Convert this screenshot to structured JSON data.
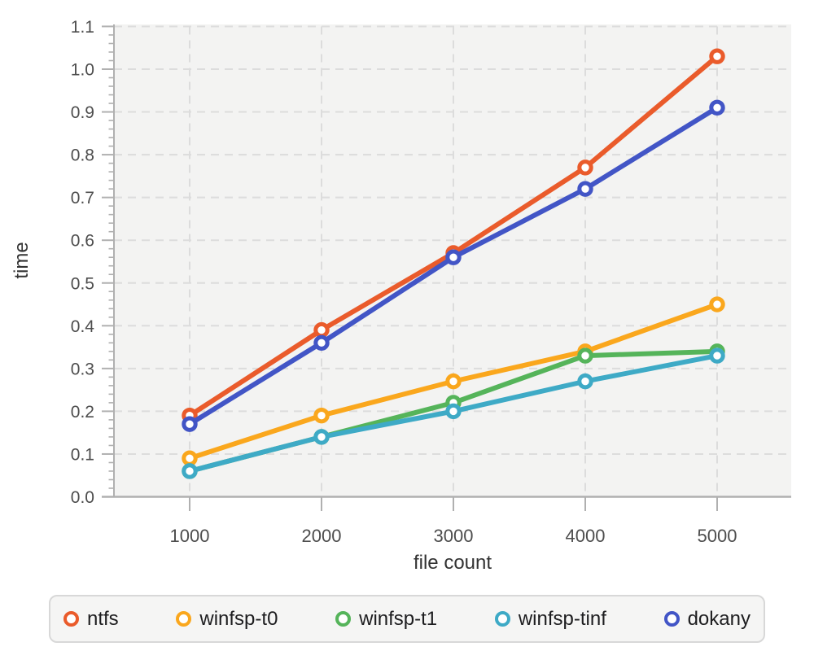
{
  "chart_data": {
    "type": "line",
    "title": "",
    "xlabel": "file count",
    "ylabel": "time",
    "x": [
      1000,
      2000,
      3000,
      4000,
      5000
    ],
    "series": [
      {
        "name": "ntfs",
        "color": "#EA5B2B",
        "values": [
          0.19,
          0.39,
          0.57,
          0.77,
          1.03
        ]
      },
      {
        "name": "winfsp-t0",
        "color": "#FAA71D",
        "values": [
          0.09,
          0.19,
          0.27,
          0.34,
          0.45
        ]
      },
      {
        "name": "winfsp-t1",
        "color": "#55B45A",
        "values": [
          0.06,
          0.14,
          0.22,
          0.33,
          0.34
        ]
      },
      {
        "name": "winfsp-tinf",
        "color": "#3EAAC6",
        "values": [
          0.06,
          0.14,
          0.2,
          0.27,
          0.33
        ]
      },
      {
        "name": "dokany",
        "color": "#4255C6",
        "values": [
          0.17,
          0.36,
          0.56,
          0.72,
          0.91
        ]
      }
    ],
    "ylim": [
      0.0,
      1.1
    ],
    "ytick_step": 0.1,
    "y_minor_step": 0.02,
    "grid": true,
    "grid_style": "dashed",
    "legend_position": "bottom",
    "marker": "open-circle"
  },
  "axes": {
    "x_tick_labels": [
      "1000",
      "2000",
      "3000",
      "4000",
      "5000"
    ],
    "y_tick_labels": [
      "0.0",
      "0.1",
      "0.2",
      "0.3",
      "0.4",
      "0.5",
      "0.6",
      "0.7",
      "0.8",
      "0.9",
      "1.0",
      "1.1"
    ]
  },
  "colors": {
    "plot_background": "#f3f3f2",
    "gridline": "#dcdcdc",
    "axis_line": "#b0b0b0",
    "tick_text": "#4d4d4d",
    "axis_title_text": "#333333",
    "legend_background": "#f5f5f4",
    "legend_border": "#d8d8d8",
    "legend_text": "#1d1d1f"
  }
}
